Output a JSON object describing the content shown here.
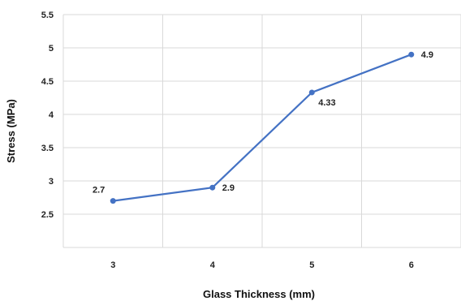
{
  "chart_data": {
    "type": "line",
    "title": "",
    "xlabel": "Glass Thickness (mm)",
    "ylabel": "Stress (MPa)",
    "categories": [
      "3",
      "4",
      "5",
      "6"
    ],
    "series": [
      {
        "values": [
          2.7,
          2.9,
          4.33,
          4.9
        ],
        "data_labels": [
          "2.7",
          "2.9",
          "4.33",
          "4.9"
        ],
        "color": "#4472C4"
      }
    ],
    "ylim": [
      2,
      5.5
    ],
    "yticks": [
      "2.5",
      "3",
      "3.5",
      "4",
      "4.5",
      "5",
      "5.5"
    ],
    "grid": true,
    "grid_color": "#d9d9d9",
    "legend": "none"
  }
}
